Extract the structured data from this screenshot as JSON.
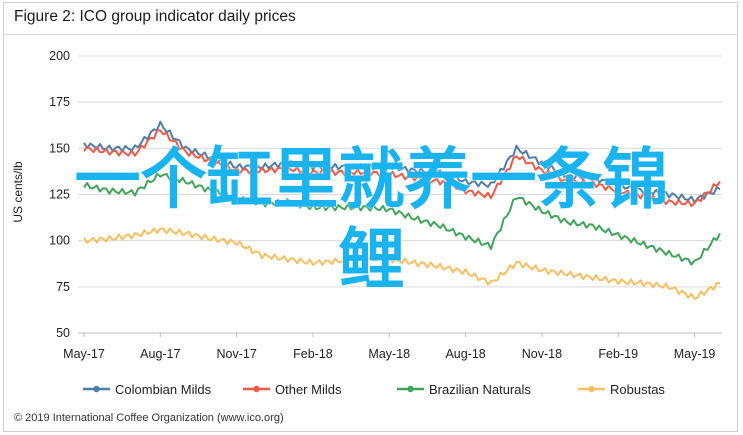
{
  "title": "Figure 2: ICO group indicator daily prices",
  "footer": "© 2019 International Coffee Organization (www.ico.org)",
  "watermark": [
    "一个缸里就养一条锦",
    "鲤"
  ],
  "chart_data": {
    "type": "line",
    "title": "Figure 2: ICO group indicator daily prices",
    "ylabel": "US cents/lb",
    "xlabel": "",
    "ylim": [
      50,
      200
    ],
    "yticks": [
      50,
      75,
      100,
      125,
      150,
      175,
      200
    ],
    "x_range": [
      "2017-05",
      "2019-06"
    ],
    "xticks": [
      "May-17",
      "Aug-17",
      "Nov-17",
      "Feb-18",
      "May-18",
      "Aug-18",
      "Nov-18",
      "Feb-19",
      "May-19"
    ],
    "grid": true,
    "legend_position": "bottom",
    "x": [
      "2017-05",
      "2017-06",
      "2017-07",
      "2017-08",
      "2017-09",
      "2017-10",
      "2017-11",
      "2017-12",
      "2018-01",
      "2018-02",
      "2018-03",
      "2018-04",
      "2018-05",
      "2018-06",
      "2018-07",
      "2018-08",
      "2018-09",
      "2018-10",
      "2018-11",
      "2018-12",
      "2019-01",
      "2019-02",
      "2019-03",
      "2019-04",
      "2019-05",
      "2019-06"
    ],
    "series": [
      {
        "name": "Colombian Milds",
        "color": "#4d7ea8",
        "values": [
          152,
          150,
          150,
          163,
          150,
          145,
          140,
          140,
          142,
          140,
          140,
          140,
          140,
          138,
          137,
          132,
          130,
          150,
          142,
          135,
          134,
          130,
          127,
          125,
          122,
          128
        ]
      },
      {
        "name": "Other Milds",
        "color": "#ee5a47",
        "values": [
          150,
          148,
          147,
          160,
          148,
          143,
          138,
          138,
          139,
          137,
          137,
          137,
          136,
          134,
          132,
          127,
          124,
          146,
          138,
          132,
          131,
          127,
          124,
          121,
          120,
          132
        ]
      },
      {
        "name": "Brazilian Naturals",
        "color": "#41a45d",
        "values": [
          130,
          127,
          126,
          136,
          132,
          127,
          123,
          120,
          121,
          118,
          118,
          118,
          117,
          112,
          108,
          102,
          97,
          124,
          116,
          110,
          108,
          103,
          98,
          93,
          88,
          104
        ]
      },
      {
        "name": "Robustas",
        "color": "#f7bf62",
        "values": [
          100,
          101,
          103,
          106,
          104,
          101,
          99,
          92,
          90,
          88,
          89,
          90,
          90,
          88,
          86,
          83,
          77,
          88,
          84,
          82,
          80,
          78,
          77,
          75,
          69,
          77
        ]
      }
    ]
  }
}
